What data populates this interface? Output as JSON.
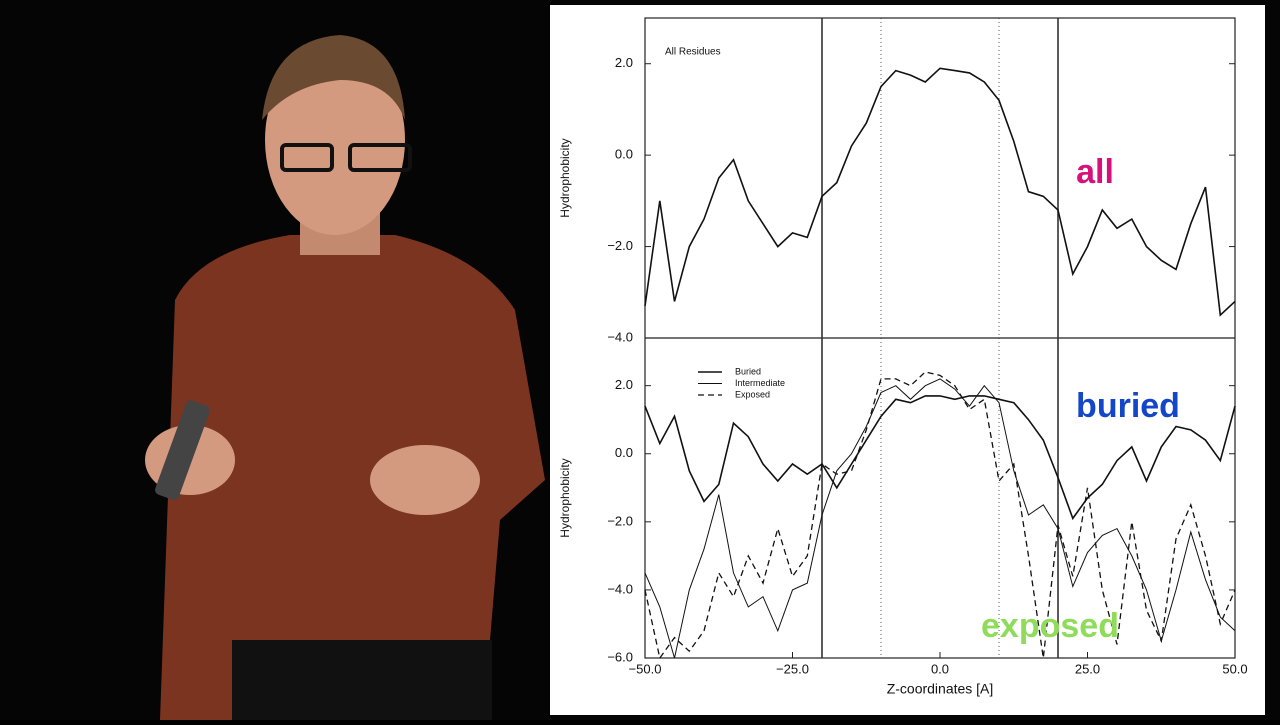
{
  "chart_data": [
    {
      "type": "line",
      "title": "All Residues",
      "ylabel": "Hydrophobicity",
      "x": [
        -50,
        -47.5,
        -45,
        -42.5,
        -40,
        -37.5,
        -35,
        -32.5,
        -30,
        -27.5,
        -25,
        -22.5,
        -20,
        -17.5,
        -15,
        -12.5,
        -10,
        -7.5,
        -5,
        -2.5,
        0,
        2.5,
        5,
        7.5,
        10,
        12.5,
        15,
        17.5,
        20,
        22.5,
        25,
        27.5,
        30,
        32.5,
        35,
        37.5,
        40,
        42.5,
        45,
        47.5,
        50
      ],
      "values": [
        -3.3,
        -1.0,
        -3.2,
        -2.0,
        -1.4,
        -0.5,
        -0.1,
        -1.0,
        -1.5,
        -2.0,
        -1.7,
        -1.8,
        -0.9,
        -0.6,
        0.2,
        0.7,
        1.5,
        1.85,
        1.75,
        1.6,
        1.9,
        1.85,
        1.8,
        1.6,
        1.2,
        0.3,
        -0.8,
        -0.9,
        -1.2,
        -2.6,
        -2.0,
        -1.2,
        -1.6,
        -1.4,
        -2.0,
        -2.3,
        -2.5,
        -1.5,
        -0.7,
        -3.5,
        -3.2
      ],
      "color": "#111111",
      "xlim": [
        -50,
        50
      ],
      "ylim": [
        -4,
        3
      ],
      "yticks": [
        {
          "value": -4,
          "label": "−4.0"
        },
        {
          "value": -2,
          "label": "−2.0"
        },
        {
          "value": 0,
          "label": "0.0"
        },
        {
          "value": 2,
          "label": "2.0"
        }
      ],
      "vlines": [
        {
          "value": -20,
          "style": "solid"
        },
        {
          "value": -10,
          "style": "dotted"
        },
        {
          "value": 10,
          "style": "dotted"
        },
        {
          "value": 20,
          "style": "solid"
        }
      ],
      "annotations": [
        {
          "text": "all",
          "color": "#d6127a"
        }
      ]
    },
    {
      "type": "line",
      "xlabel": "Z-coordinates [A]",
      "ylabel": "Hydrophobicity",
      "x": [
        -50,
        -47.5,
        -45,
        -42.5,
        -40,
        -37.5,
        -35,
        -32.5,
        -30,
        -27.5,
        -25,
        -22.5,
        -20,
        -17.5,
        -15,
        -12.5,
        -10,
        -7.5,
        -5,
        -2.5,
        0,
        2.5,
        5,
        7.5,
        10,
        12.5,
        15,
        17.5,
        20,
        22.5,
        25,
        27.5,
        30,
        32.5,
        35,
        37.5,
        40,
        42.5,
        45,
        47.5,
        50
      ],
      "series": [
        {
          "name": "Buried",
          "color": "#111111",
          "dash": "solid",
          "values": [
            1.4,
            0.3,
            1.1,
            -0.5,
            -1.4,
            -0.9,
            0.9,
            0.5,
            -0.3,
            -0.8,
            -0.3,
            -0.6,
            -0.3,
            -1.0,
            -0.3,
            0.4,
            1.1,
            1.6,
            1.5,
            1.7,
            1.7,
            1.6,
            1.7,
            1.7,
            1.6,
            1.5,
            1.0,
            0.4,
            -0.7,
            -1.9,
            -1.3,
            -0.9,
            -0.2,
            0.2,
            -0.8,
            0.2,
            0.8,
            0.7,
            0.4,
            -0.2,
            1.4
          ]
        },
        {
          "name": "Intermediate",
          "color": "#111111",
          "dash": "thin",
          "values": [
            -3.5,
            -4.5,
            -6.0,
            -4.0,
            -2.8,
            -1.2,
            -3.5,
            -4.5,
            -4.2,
            -5.2,
            -4.0,
            -3.8,
            -1.8,
            -0.5,
            0.0,
            0.8,
            1.8,
            2.0,
            1.6,
            2.0,
            2.2,
            1.9,
            1.4,
            2.0,
            1.5,
            -0.5,
            -1.8,
            -1.5,
            -2.2,
            -3.9,
            -2.9,
            -2.4,
            -2.2,
            -3.0,
            -4.0,
            -5.5,
            -4.0,
            -2.3,
            -3.7,
            -4.8,
            -5.2
          ]
        },
        {
          "name": "Exposed",
          "color": "#111111",
          "dash": "dashed",
          "values": [
            -4.0,
            -6.0,
            -5.4,
            -5.8,
            -5.2,
            -3.5,
            -4.2,
            -3.0,
            -3.8,
            -2.2,
            -3.6,
            -3.0,
            -0.3,
            -0.6,
            -0.5,
            0.7,
            2.2,
            2.2,
            2.0,
            2.4,
            2.3,
            2.0,
            1.3,
            1.6,
            -0.8,
            -0.3,
            -3.0,
            -6.0,
            -2.1,
            -3.6,
            -1.0,
            -4.0,
            -5.6,
            -2.0,
            -4.6,
            -5.5,
            -2.5,
            -1.5,
            -3.0,
            -5.0,
            -4.0
          ]
        }
      ],
      "xlim": [
        -50,
        50
      ],
      "ylim": [
        -6,
        3.4
      ],
      "xticks": [
        {
          "value": -50,
          "label": "−50.0"
        },
        {
          "value": -25,
          "label": "−25.0"
        },
        {
          "value": 0,
          "label": "0.0"
        },
        {
          "value": 25,
          "label": "25.0"
        },
        {
          "value": 50,
          "label": "50.0"
        }
      ],
      "yticks": [
        {
          "value": -6,
          "label": "−6.0"
        },
        {
          "value": -4,
          "label": "−4.0"
        },
        {
          "value": -2,
          "label": "−2.0"
        },
        {
          "value": 0,
          "label": "0.0"
        },
        {
          "value": 2,
          "label": "2.0"
        }
      ],
      "vlines": [
        {
          "value": -20,
          "style": "solid"
        },
        {
          "value": -10,
          "style": "dotted"
        },
        {
          "value": 10,
          "style": "dotted"
        },
        {
          "value": 20,
          "style": "solid"
        }
      ],
      "annotations": [
        {
          "text": "buried",
          "color": "#1346c8"
        },
        {
          "text": "exposed",
          "color": "#8fdc5a"
        }
      ]
    }
  ]
}
